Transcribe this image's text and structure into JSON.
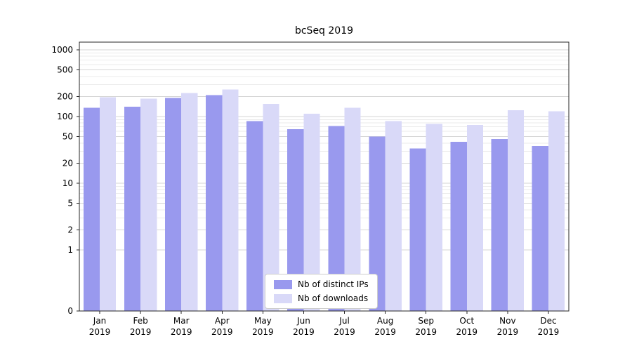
{
  "chart_data": {
    "type": "bar",
    "title": "bcSeq 2019",
    "categories": [
      "Jan 2019",
      "Feb 2019",
      "Mar 2019",
      "Apr 2019",
      "May 2019",
      "Jun 2019",
      "Jul 2019",
      "Aug 2019",
      "Sep 2019",
      "Oct 2019",
      "Nov 2019",
      "Dec 2019"
    ],
    "series": [
      {
        "name": "Nb of distinct IPs",
        "color": "#9999ee",
        "values": [
          135,
          140,
          190,
          210,
          85,
          65,
          72,
          50,
          33,
          42,
          46,
          36
        ]
      },
      {
        "name": "Nb of downloads",
        "color": "#d9d9f8",
        "values": [
          195,
          185,
          225,
          255,
          155,
          110,
          135,
          85,
          78,
          75,
          125,
          120
        ]
      }
    ],
    "yscale": "symlog",
    "ylim": [
      0,
      1000
    ],
    "yticks": [
      0,
      1,
      2,
      5,
      10,
      20,
      50,
      100,
      200,
      500,
      1000
    ],
    "grid": true,
    "legend_position": "lower center"
  },
  "colors": {
    "grid_major": "#d6d6d6",
    "grid_minor": "#ebebeb",
    "axis": "#262626",
    "text": "#000000",
    "legend_border": "#cccccc",
    "legend_bg": "#ffffff"
  }
}
